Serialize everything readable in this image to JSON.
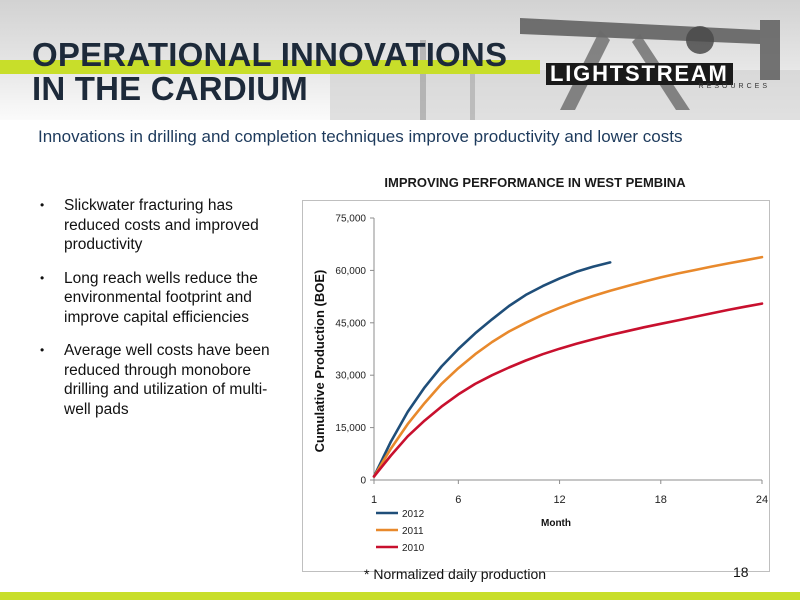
{
  "header": {
    "title_line1": "OPERATIONAL INNOVATIONS",
    "title_line2": "IN THE CARDIUM",
    "subtitle": "Innovations in drilling and completion techniques improve productivity and lower costs"
  },
  "logo": {
    "name": "LIGHTSTREAM",
    "tagline": "RESOURCES"
  },
  "bullets": [
    "Slickwater fracturing has reduced costs and improved productivity",
    "Long reach wells reduce the environmental footprint and improve capital efficiencies",
    "Average well costs have been reduced through monobore drilling and utilization of multi-well pads"
  ],
  "footnote": "* Normalized daily production",
  "page_number": "18",
  "colors": {
    "accent": "#c8de2a",
    "title": "#1d2a3a",
    "subtitle": "#1d3a5c"
  },
  "chart_data": {
    "type": "line",
    "title": "IMPROVING PERFORMANCE IN WEST PEMBINA",
    "xlabel": "Month",
    "ylabel": "Cumulative Production (BOE)",
    "xlim": [
      1,
      24
    ],
    "ylim": [
      0,
      75000
    ],
    "x_ticks": [
      1,
      6,
      12,
      18,
      24
    ],
    "y_ticks": [
      0,
      15000,
      30000,
      45000,
      60000,
      75000
    ],
    "y_tick_labels": [
      "0",
      "15,000",
      "30,000",
      "45,000",
      "60,000",
      "75,000"
    ],
    "grid": false,
    "legend_position": "bottom-left",
    "series": [
      {
        "name": "2012",
        "color": "#1f4e79",
        "x": [
          1,
          2,
          3,
          4,
          5,
          6,
          7,
          8,
          9,
          10,
          11,
          12,
          13,
          14,
          15
        ],
        "y": [
          1000,
          11000,
          19500,
          26500,
          32500,
          37500,
          42000,
          46000,
          49800,
          53000,
          55500,
          57700,
          59600,
          61100,
          62300
        ]
      },
      {
        "name": "2011",
        "color": "#e8892c",
        "x": [
          1,
          2,
          3,
          4,
          5,
          6,
          7,
          8,
          9,
          10,
          11,
          12,
          13,
          14,
          15,
          16,
          17,
          18,
          19,
          20,
          21,
          22,
          23,
          24
        ],
        "y": [
          1000,
          9000,
          16000,
          22000,
          27500,
          32000,
          36000,
          39500,
          42500,
          45000,
          47300,
          49300,
          51100,
          52700,
          54200,
          55500,
          56800,
          58000,
          59100,
          60100,
          61100,
          62000,
          62900,
          63800
        ]
      },
      {
        "name": "2010",
        "color": "#c8102e",
        "x": [
          1,
          2,
          3,
          4,
          5,
          6,
          7,
          8,
          9,
          10,
          11,
          12,
          13,
          14,
          15,
          16,
          17,
          18,
          19,
          20,
          21,
          22,
          23,
          24
        ],
        "y": [
          1000,
          7000,
          12500,
          17000,
          21000,
          24500,
          27500,
          30000,
          32200,
          34200,
          36000,
          37600,
          39000,
          40300,
          41500,
          42600,
          43700,
          44700,
          45700,
          46700,
          47700,
          48700,
          49600,
          50500
        ]
      }
    ]
  }
}
